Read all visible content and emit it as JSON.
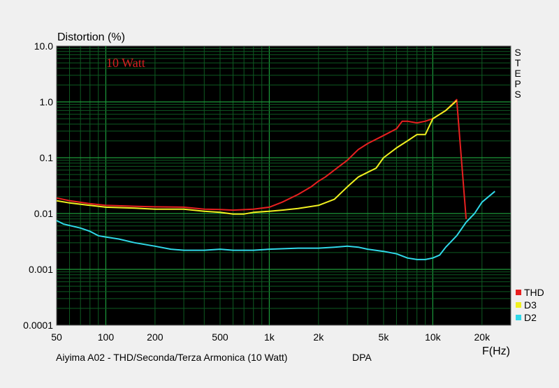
{
  "chart_data": {
    "type": "line",
    "title": "Distortion (%)",
    "xlabel": "F(Hz)",
    "annotation": "10 Watt",
    "side_label": "STEPS",
    "caption": "Aiyima A02 - THD/Seconda/Terza Armonica (10 Watt)",
    "caption_right": "DPA",
    "x_scale": "log",
    "y_scale": "log",
    "xlim": [
      50,
      30000
    ],
    "ylim": [
      0.0001,
      10
    ],
    "grid": true,
    "legend_position": "bottom-right",
    "x_tick_labels": [
      {
        "v": 50,
        "t": "50"
      },
      {
        "v": 100,
        "t": "100"
      },
      {
        "v": 200,
        "t": "200"
      },
      {
        "v": 500,
        "t": "500"
      },
      {
        "v": 1000,
        "t": "1k"
      },
      {
        "v": 2000,
        "t": "2k"
      },
      {
        "v": 5000,
        "t": "5k"
      },
      {
        "v": 10000,
        "t": "10k"
      },
      {
        "v": 20000,
        "t": "20k"
      }
    ],
    "y_tick_labels": [
      {
        "v": 10,
        "t": "10.0"
      },
      {
        "v": 1,
        "t": "1.0"
      },
      {
        "v": 0.1,
        "t": "0.1"
      },
      {
        "v": 0.01,
        "t": "0.01"
      },
      {
        "v": 0.001,
        "t": "0.001"
      },
      {
        "v": 0.0001,
        "t": "0.0001"
      }
    ],
    "series": [
      {
        "name": "THD",
        "color": "#e82020",
        "points": [
          [
            50,
            0.019
          ],
          [
            60,
            0.017
          ],
          [
            80,
            0.015
          ],
          [
            100,
            0.014
          ],
          [
            150,
            0.0135
          ],
          [
            200,
            0.0132
          ],
          [
            300,
            0.013
          ],
          [
            400,
            0.012
          ],
          [
            500,
            0.0118
          ],
          [
            600,
            0.0115
          ],
          [
            800,
            0.012
          ],
          [
            1000,
            0.013
          ],
          [
            1200,
            0.016
          ],
          [
            1500,
            0.022
          ],
          [
            1800,
            0.03
          ],
          [
            2000,
            0.038
          ],
          [
            2200,
            0.045
          ],
          [
            2500,
            0.06
          ],
          [
            3000,
            0.09
          ],
          [
            3500,
            0.14
          ],
          [
            4000,
            0.18
          ],
          [
            5000,
            0.25
          ],
          [
            6000,
            0.33
          ],
          [
            6500,
            0.45
          ],
          [
            7000,
            0.45
          ],
          [
            8000,
            0.42
          ],
          [
            9000,
            0.45
          ],
          [
            10000,
            0.5
          ],
          [
            12000,
            0.7
          ],
          [
            14000,
            1.1
          ],
          [
            16000,
            0.008
          ]
        ]
      },
      {
        "name": "D3",
        "color": "#f0f020",
        "points": [
          [
            50,
            0.017
          ],
          [
            60,
            0.0155
          ],
          [
            80,
            0.014
          ],
          [
            100,
            0.013
          ],
          [
            150,
            0.0125
          ],
          [
            200,
            0.012
          ],
          [
            300,
            0.012
          ],
          [
            400,
            0.011
          ],
          [
            500,
            0.0105
          ],
          [
            600,
            0.0098
          ],
          [
            700,
            0.0098
          ],
          [
            800,
            0.0105
          ],
          [
            1000,
            0.011
          ],
          [
            1200,
            0.0115
          ],
          [
            1500,
            0.0123
          ],
          [
            2000,
            0.014
          ],
          [
            2500,
            0.018
          ],
          [
            3000,
            0.03
          ],
          [
            3500,
            0.045
          ],
          [
            4000,
            0.055
          ],
          [
            4500,
            0.065
          ],
          [
            5000,
            0.1
          ],
          [
            6000,
            0.15
          ],
          [
            7000,
            0.2
          ],
          [
            8000,
            0.26
          ],
          [
            9000,
            0.26
          ],
          [
            10000,
            0.5
          ],
          [
            12000,
            0.7
          ],
          [
            14000,
            1.05
          ]
        ]
      },
      {
        "name": "D2",
        "color": "#30d8e8",
        "points": [
          [
            50,
            0.0075
          ],
          [
            55,
            0.0065
          ],
          [
            70,
            0.0055
          ],
          [
            80,
            0.0048
          ],
          [
            90,
            0.004
          ],
          [
            100,
            0.0038
          ],
          [
            120,
            0.0035
          ],
          [
            150,
            0.003
          ],
          [
            200,
            0.0026
          ],
          [
            250,
            0.0023
          ],
          [
            300,
            0.0022
          ],
          [
            400,
            0.0022
          ],
          [
            500,
            0.0023
          ],
          [
            600,
            0.0022
          ],
          [
            700,
            0.0022
          ],
          [
            800,
            0.0022
          ],
          [
            1000,
            0.0023
          ],
          [
            1500,
            0.0024
          ],
          [
            2000,
            0.0024
          ],
          [
            2500,
            0.0025
          ],
          [
            3000,
            0.0026
          ],
          [
            3500,
            0.0025
          ],
          [
            4000,
            0.0023
          ],
          [
            5000,
            0.0021
          ],
          [
            6000,
            0.0019
          ],
          [
            7000,
            0.0016
          ],
          [
            8000,
            0.0015
          ],
          [
            9000,
            0.0015
          ],
          [
            10000,
            0.0016
          ],
          [
            11000,
            0.0018
          ],
          [
            12000,
            0.0025
          ],
          [
            14000,
            0.004
          ],
          [
            16000,
            0.007
          ],
          [
            18000,
            0.01
          ],
          [
            20000,
            0.016
          ],
          [
            24000,
            0.025
          ]
        ]
      }
    ]
  }
}
